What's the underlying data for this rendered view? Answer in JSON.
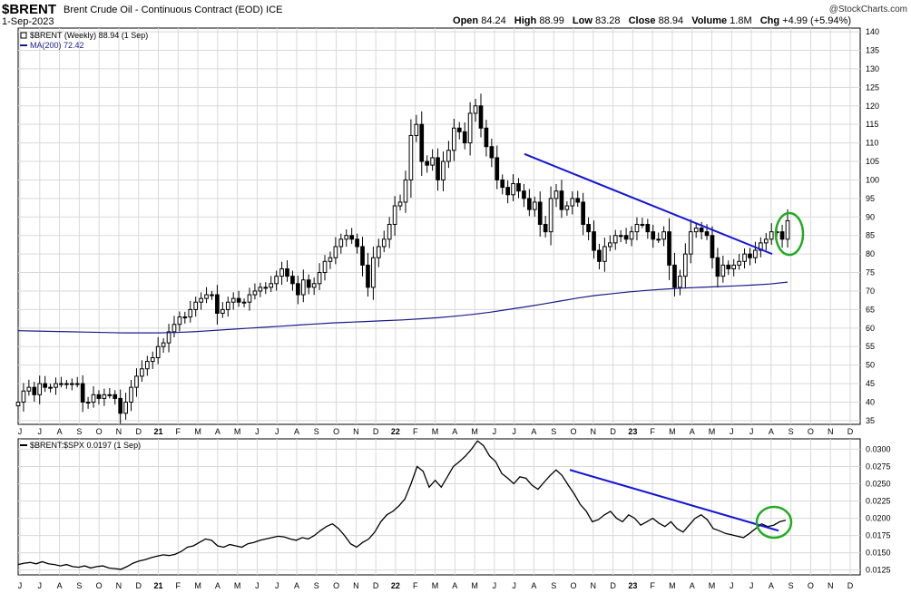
{
  "header": {
    "symbol": "$BRENT",
    "name": "Brent Crude Oil - Continuous Contract (EOD)",
    "exchange": "ICE",
    "date": "1-Sep-2023",
    "watermark": "@StockCharts.com",
    "open_label": "Open",
    "open": "84.24",
    "high_label": "High",
    "high": "88.99",
    "low_label": "Low",
    "low": "83.28",
    "close_label": "Close",
    "close": "88.94",
    "volume_label": "Volume",
    "volume": "1.8M",
    "chg_label": "Chg",
    "chg": "+4.99 (+5.94%)"
  },
  "colors": {
    "candle": "#000000",
    "ma": "#1a1a8a",
    "trendline": "#1515d6",
    "highlight": "#22aa22",
    "grid": "#d9d9d9"
  },
  "chart_data": [
    {
      "type": "candlestick",
      "legend": [
        "$BRENT (Weekly) 88.94 (1 Sep)",
        "MA(200) 72.42"
      ],
      "x_labels": [
        "J",
        "J",
        "A",
        "S",
        "O",
        "N",
        "D",
        "21",
        "F",
        "M",
        "A",
        "M",
        "J",
        "J",
        "A",
        "S",
        "O",
        "N",
        "D",
        "22",
        "F",
        "M",
        "A",
        "M",
        "J",
        "J",
        "A",
        "S",
        "O",
        "N",
        "D",
        "23",
        "F",
        "M",
        "A",
        "M",
        "J",
        "J",
        "A",
        "S",
        "O",
        "N",
        "D"
      ],
      "y_ticks": [
        35,
        40,
        45,
        50,
        55,
        60,
        65,
        70,
        75,
        80,
        85,
        90,
        95,
        100,
        105,
        110,
        115,
        120,
        125,
        130,
        135,
        140
      ],
      "ylim": [
        34,
        141
      ],
      "grid": true,
      "close": [
        40,
        43,
        44,
        42,
        45,
        44,
        44,
        45,
        45,
        45,
        45,
        45,
        40,
        40,
        42,
        41,
        42,
        42,
        41,
        37,
        40,
        44,
        47,
        49,
        51,
        52,
        55,
        56,
        59,
        61,
        63,
        63,
        65,
        67,
        68,
        69,
        69,
        64,
        65,
        67,
        68,
        67,
        67,
        69,
        70,
        71,
        71,
        72,
        74,
        76,
        74,
        72,
        69,
        73,
        71,
        72,
        75,
        78,
        79,
        82,
        84,
        85,
        84,
        82,
        77,
        71,
        79,
        82,
        84,
        88,
        93,
        94,
        100,
        112,
        115,
        105,
        104,
        106,
        100,
        105,
        108,
        114,
        113,
        110,
        118,
        120,
        114,
        109,
        106,
        100,
        98,
        96,
        99,
        97,
        95,
        92,
        94,
        88,
        86,
        95,
        97,
        92,
        93,
        95,
        94,
        88,
        86,
        81,
        78,
        82,
        83,
        85,
        85,
        84,
        86,
        88,
        88,
        86,
        84,
        84,
        86,
        77,
        71,
        74,
        80,
        86,
        87,
        86,
        85,
        79,
        74,
        77,
        76,
        77,
        78,
        80,
        79,
        81,
        83,
        84,
        86,
        86,
        84,
        89
      ],
      "ma200": [
        59.3,
        59.2,
        59.1,
        59.0,
        58.9,
        58.8,
        58.7,
        58.7,
        58.7,
        58.8,
        59.0,
        59.3,
        59.6,
        59.9,
        60.2,
        60.5,
        60.8,
        61.1,
        61.4,
        61.6,
        61.8,
        62.0,
        62.2,
        62.5,
        62.8,
        63.2,
        63.7,
        64.3,
        65.0,
        65.7,
        66.5,
        67.3,
        68.1,
        68.8,
        69.3,
        69.8,
        70.2,
        70.5,
        70.8,
        71.0,
        71.2,
        71.4,
        71.6,
        71.9,
        72.42
      ],
      "trendline": [
        {
          "x": "Jul 2022",
          "y": 107
        },
        {
          "x": "Aug 2023",
          "y": 80
        }
      ],
      "highlight": "Aug-Sep 2023 breakout"
    },
    {
      "type": "line",
      "legend": [
        "$BRENT:$SPX 0.0197 (1 Sep)"
      ],
      "y_ticks": [
        "0.0125",
        "0.0150",
        "0.0175",
        "0.0200",
        "0.0225",
        "0.0250",
        "0.0275",
        "0.0300"
      ],
      "ylim": [
        0.0118,
        0.0315
      ],
      "ratio": [
        0.0133,
        0.0135,
        0.0136,
        0.0134,
        0.0137,
        0.0134,
        0.0133,
        0.0131,
        0.0133,
        0.013,
        0.0129,
        0.0131,
        0.0128,
        0.013,
        0.0131,
        0.0128,
        0.0127,
        0.0126,
        0.013,
        0.0135,
        0.0138,
        0.014,
        0.0143,
        0.0145,
        0.0147,
        0.0146,
        0.0148,
        0.0152,
        0.0158,
        0.016,
        0.0165,
        0.017,
        0.0168,
        0.016,
        0.0158,
        0.0162,
        0.016,
        0.0158,
        0.0163,
        0.0165,
        0.0168,
        0.017,
        0.0172,
        0.0174,
        0.0173,
        0.017,
        0.0168,
        0.0172,
        0.017,
        0.0175,
        0.0182,
        0.0188,
        0.0192,
        0.0185,
        0.0175,
        0.0163,
        0.0158,
        0.0165,
        0.017,
        0.018,
        0.0195,
        0.0205,
        0.021,
        0.0218,
        0.0228,
        0.025,
        0.0275,
        0.0268,
        0.0245,
        0.0255,
        0.0245,
        0.026,
        0.0275,
        0.0282,
        0.029,
        0.03,
        0.0312,
        0.0305,
        0.029,
        0.0282,
        0.0265,
        0.0258,
        0.025,
        0.026,
        0.0258,
        0.0248,
        0.0242,
        0.0252,
        0.0262,
        0.027,
        0.0262,
        0.0248,
        0.0235,
        0.022,
        0.021,
        0.0195,
        0.0198,
        0.0205,
        0.021,
        0.02,
        0.0195,
        0.0205,
        0.02,
        0.019,
        0.0195,
        0.02,
        0.0193,
        0.0188,
        0.0195,
        0.0185,
        0.018,
        0.019,
        0.02,
        0.0205,
        0.0198,
        0.0185,
        0.0182,
        0.0178,
        0.0176,
        0.0174,
        0.0172,
        0.0178,
        0.0185,
        0.0192,
        0.0188,
        0.019,
        0.0195,
        0.0197
      ],
      "trendline": [
        {
          "x": "Oct 2022",
          "y": 0.027
        },
        {
          "x": "Aug 2023",
          "y": 0.0182
        }
      ],
      "highlight": "Aug-Sep 2023 breakout"
    }
  ]
}
